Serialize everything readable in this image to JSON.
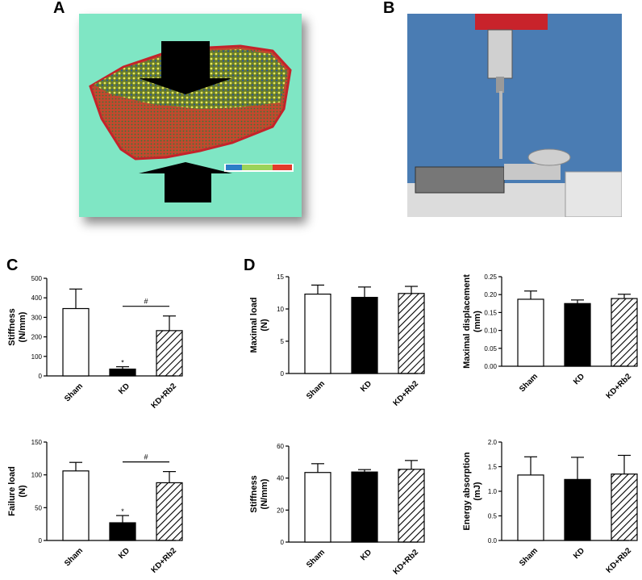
{
  "panels": {
    "a": "A",
    "b": "B",
    "c": "C",
    "d": "D"
  },
  "chart_data": [
    {
      "panel": "C",
      "type": "bar",
      "categories": [
        "Sham",
        "KD",
        "KD+Rb2"
      ],
      "values": [
        345,
        35,
        232
      ],
      "errors": [
        100,
        12,
        75
      ],
      "ylabel": "Stiffness\n(N/mm)",
      "ylim": [
        0,
        500
      ],
      "yticks": [
        0,
        100,
        200,
        300,
        400,
        500
      ],
      "annotations": [
        {
          "type": "star",
          "text": "*",
          "category": "KD"
        },
        {
          "type": "bracket",
          "text": "#",
          "from": "KD",
          "to": "KD+Rb2"
        }
      ]
    },
    {
      "panel": "C",
      "type": "bar",
      "categories": [
        "Sham",
        "KD",
        "KD+Rb2"
      ],
      "values": [
        106,
        27,
        88
      ],
      "errors": [
        13,
        11,
        17
      ],
      "ylabel": "Failure load\n(N)",
      "ylim": [
        0,
        150
      ],
      "yticks": [
        0,
        50,
        100,
        150
      ],
      "annotations": [
        {
          "type": "star",
          "text": "*",
          "category": "KD"
        },
        {
          "type": "bracket",
          "text": "#",
          "from": "KD",
          "to": "KD+Rb2"
        }
      ]
    },
    {
      "panel": "D",
      "type": "bar",
      "categories": [
        "Sham",
        "KD",
        "KD+Rb2"
      ],
      "values": [
        12.3,
        11.8,
        12.4
      ],
      "errors": [
        1.4,
        1.6,
        1.1
      ],
      "ylabel": "Maximal load\n(N)",
      "ylim": [
        0,
        15
      ],
      "yticks": [
        0,
        5,
        10,
        15
      ],
      "annotations": []
    },
    {
      "panel": "D",
      "type": "bar",
      "categories": [
        "Sham",
        "KD",
        "KD+Rb2"
      ],
      "values": [
        0.187,
        0.175,
        0.189
      ],
      "errors": [
        0.023,
        0.01,
        0.012
      ],
      "ylabel": "Maximal displacement\n(mm)",
      "ylim": [
        0,
        0.25
      ],
      "yticks": [
        "0.00",
        "0.05",
        "0.10",
        "0.15",
        "0.20",
        "0.25"
      ],
      "annotations": []
    },
    {
      "panel": "D",
      "type": "bar",
      "categories": [
        "Sham",
        "KD",
        "KD+Rb2"
      ],
      "values": [
        43.5,
        43.8,
        45.5
      ],
      "errors": [
        5.5,
        1.5,
        5.5
      ],
      "ylabel": "Stiffness\n(N/mm)",
      "ylim": [
        0,
        60
      ],
      "yticks": [
        0,
        20,
        40,
        60
      ],
      "annotations": []
    },
    {
      "panel": "D",
      "type": "bar",
      "categories": [
        "Sham",
        "KD",
        "KD+Rb2"
      ],
      "values": [
        1.33,
        1.24,
        1.35
      ],
      "errors": [
        0.37,
        0.45,
        0.38
      ],
      "ylabel": "Energy absorption\n(mJ)",
      "ylim": [
        0,
        2.0
      ],
      "yticks": [
        "0.0",
        "0.5",
        "1.0",
        "1.5",
        "2.0"
      ],
      "annotations": []
    }
  ],
  "bar_styles": [
    "white",
    "black",
    "hatched"
  ]
}
